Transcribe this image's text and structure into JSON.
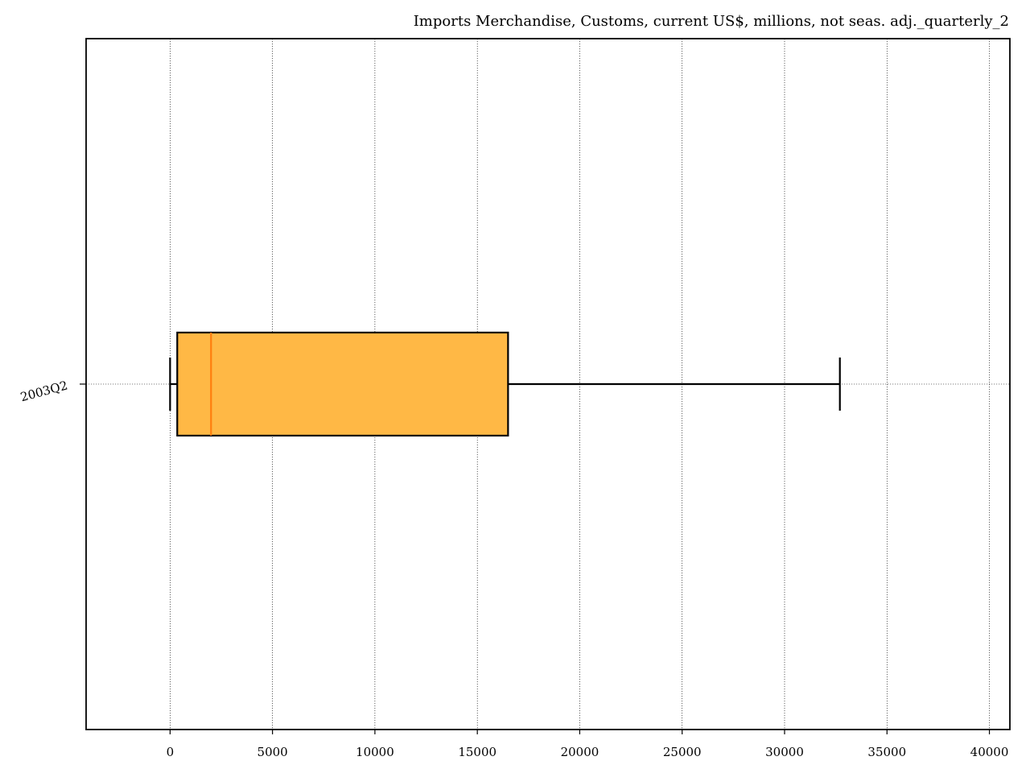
{
  "chart_data": {
    "type": "boxplot",
    "orientation": "horizontal",
    "title": "Imports Merchandise, Customs, current US$, millions, not seas. adj._quarterly_2",
    "xlabel": "",
    "ylabel": "",
    "xlim": [
      -4100,
      41000
    ],
    "xticks": [
      0,
      5000,
      10000,
      15000,
      20000,
      25000,
      30000,
      35000,
      40000
    ],
    "xtick_labels": [
      "0",
      "5000",
      "10000",
      "15000",
      "20000",
      "25000",
      "30000",
      "35000",
      "40000"
    ],
    "categories": [
      "2003Q2"
    ],
    "boxes": [
      {
        "label": "2003Q2",
        "whisker_low": 0,
        "q1": 350,
        "median": 2000,
        "q3": 16500,
        "whisker_high": 32700
      }
    ],
    "grid": true,
    "colors": {
      "box_fill": "#ffb845",
      "median_line": "#ff7f0e",
      "box_edge": "#000000",
      "grid": "#000000"
    }
  }
}
